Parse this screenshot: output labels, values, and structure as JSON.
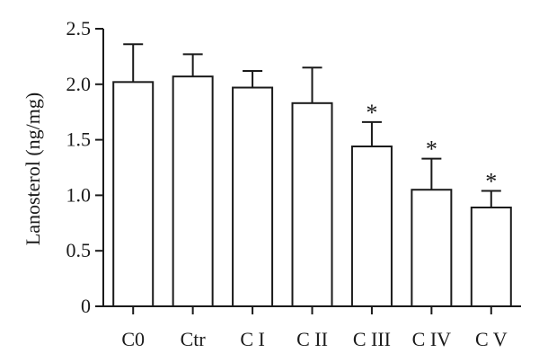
{
  "chart_data": {
    "type": "bar",
    "title": "",
    "xlabel": "",
    "ylabel": "Lanosterol (ng/mg)",
    "ylim": [
      0,
      2.5
    ],
    "yticks": [
      0,
      0.5,
      1.0,
      1.5,
      2.0,
      2.5
    ],
    "ytick_labels": [
      "0",
      "0.5",
      "1.0",
      "1.5",
      "2.0",
      "2.5"
    ],
    "categories": [
      "C0",
      "Ctr",
      "C I",
      "C II",
      "C III",
      "C IV",
      "C V"
    ],
    "values": [
      2.02,
      2.07,
      1.97,
      1.83,
      1.44,
      1.05,
      0.89
    ],
    "errors": [
      0.34,
      0.2,
      0.15,
      0.32,
      0.22,
      0.28,
      0.15
    ],
    "significance": [
      "",
      "",
      "",
      "",
      "*",
      "*",
      "*"
    ],
    "grid": false,
    "legend": "none",
    "colors": {
      "bar_fill": "#ffffff",
      "stroke": "#1a1a1a"
    }
  }
}
